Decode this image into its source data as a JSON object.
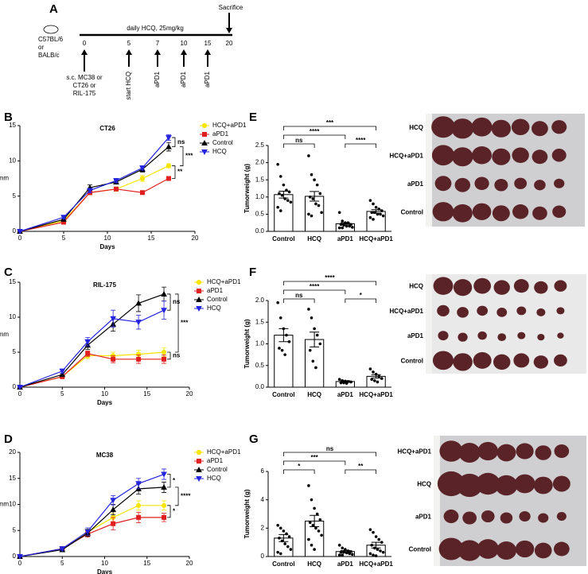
{
  "timeline": {
    "label": "A",
    "treatment": "daily HCQ, 25mg/kg",
    "end": "Sacrifice",
    "mice": [
      "C57BL/6",
      "or",
      "BALB/c"
    ],
    "injection": [
      "s.c. MC38 or",
      "CT26 or",
      "RIL-175"
    ],
    "days": [
      0,
      5,
      7,
      10,
      15,
      20
    ],
    "events": [
      "start HCQ",
      "aPD1",
      "aPD1",
      "aPD1"
    ]
  },
  "chart_data": [
    {
      "type": "line",
      "label": "B",
      "title": "CT26",
      "x_label": "Days",
      "y_label": "mm",
      "x": [
        0,
        5,
        8,
        11,
        14,
        17
      ],
      "xlim": [
        0,
        20
      ],
      "xticks": [
        0,
        5,
        10,
        15,
        20
      ],
      "ylim": [
        0,
        15
      ],
      "yticks": [
        0,
        5,
        10,
        15
      ],
      "series": [
        {
          "name": "HCQ+aPD1",
          "color": "#f5e500",
          "marker": "circle",
          "values": [
            0,
            1.5,
            5.5,
            6,
            7.5,
            9.3
          ],
          "errors": [
            0,
            0.2,
            0.3,
            0.3,
            0.4,
            0.3
          ]
        },
        {
          "name": "aPD1",
          "color": "#e02020",
          "marker": "square",
          "values": [
            0,
            1.3,
            5.5,
            6,
            5.5,
            7.5
          ],
          "errors": [
            0,
            0.2,
            0.3,
            0.2,
            0.2,
            0.2
          ]
        },
        {
          "name": "Control",
          "color": "#000000",
          "marker": "triangle-up",
          "values": [
            0,
            1.7,
            6.2,
            7,
            8.8,
            12
          ],
          "errors": [
            0,
            0.2,
            0.4,
            0.3,
            0.4,
            0.6
          ]
        },
        {
          "name": "HCQ",
          "color": "#2424e0",
          "marker": "triangle-down",
          "values": [
            0,
            2,
            5.8,
            7.2,
            9,
            13.3
          ],
          "errors": [
            0,
            0.2,
            0.3,
            0.3,
            0.3,
            0.4
          ]
        }
      ],
      "annotations": [
        {
          "text": "ns",
          "between": [
            "HCQ",
            "Control"
          ]
        },
        {
          "text": "***",
          "between": [
            "Control",
            "HCQ+aPD1"
          ]
        },
        {
          "text": "**",
          "between": [
            "HCQ+aPD1",
            "aPD1"
          ]
        }
      ]
    },
    {
      "type": "line",
      "label": "C",
      "title": "RIL-175",
      "x_label": "Days",
      "y_label": "mm",
      "x": [
        0,
        5,
        8,
        11,
        14,
        17
      ],
      "xlim": [
        0,
        20
      ],
      "xticks": [
        0,
        5,
        10,
        15,
        20
      ],
      "ylim": [
        0,
        15
      ],
      "yticks": [
        0,
        5,
        10,
        15
      ],
      "series": [
        {
          "name": "HCQ+aPD1",
          "color": "#f5e500",
          "marker": "circle",
          "values": [
            0,
            1.5,
            4.5,
            4.5,
            4.7,
            5
          ],
          "errors": [
            0,
            0.2,
            0.4,
            0.5,
            0.6,
            0.6
          ]
        },
        {
          "name": "aPD1",
          "color": "#e02020",
          "marker": "square",
          "values": [
            0,
            1.5,
            4.8,
            4,
            4,
            4
          ],
          "errors": [
            0,
            0.2,
            0.4,
            0.5,
            0.6,
            0.6
          ]
        },
        {
          "name": "Control",
          "color": "#000000",
          "marker": "triangle-up",
          "values": [
            0,
            1.8,
            6,
            9,
            12,
            13.3
          ],
          "errors": [
            0,
            0.2,
            0.6,
            1,
            1.2,
            1
          ]
        },
        {
          "name": "HCQ",
          "color": "#2424e0",
          "marker": "triangle-down",
          "values": [
            0,
            2.3,
            6.5,
            9.8,
            9.3,
            11
          ],
          "errors": [
            0,
            0.3,
            0.6,
            1.2,
            1,
            1.3
          ]
        }
      ],
      "annotations": [
        {
          "text": "ns",
          "between": [
            "HCQ",
            "Control"
          ]
        },
        {
          "text": "***",
          "between": [
            "Control",
            "HCQ+aPD1"
          ]
        },
        {
          "text": "ns",
          "between": [
            "HCQ+aPD1",
            "aPD1"
          ]
        }
      ]
    },
    {
      "type": "line",
      "label": "D",
      "title": "MC38",
      "x_label": "Days",
      "y_label": "mm",
      "x": [
        0,
        5,
        8,
        11,
        14,
        17
      ],
      "xlim": [
        0,
        20
      ],
      "xticks": [
        0,
        5,
        10,
        15,
        20
      ],
      "ylim": [
        0,
        20
      ],
      "yticks": [
        0,
        5,
        10,
        15,
        20
      ],
      "series": [
        {
          "name": "HCQ+aPD1",
          "color": "#f5e500",
          "marker": "circle",
          "values": [
            0,
            1.5,
            4.7,
            7.5,
            9.8,
            9.8
          ],
          "errors": [
            0,
            0.2,
            0.6,
            0.8,
            0.9,
            0.9
          ]
        },
        {
          "name": "aPD1",
          "color": "#e02020",
          "marker": "square",
          "values": [
            0,
            1.5,
            4.3,
            6.3,
            7.5,
            7.5
          ],
          "errors": [
            0,
            0.2,
            0.6,
            1.2,
            1,
            0.8
          ]
        },
        {
          "name": "Control",
          "color": "#000000",
          "marker": "triangle-up",
          "values": [
            0,
            1.3,
            4.5,
            9,
            13,
            13.3
          ],
          "errors": [
            0,
            0.2,
            0.6,
            1,
            1,
            1
          ]
        },
        {
          "name": "HCQ",
          "color": "#2424e0",
          "marker": "triangle-down",
          "values": [
            0,
            1.5,
            4.8,
            10.8,
            14,
            15.8
          ],
          "errors": [
            0,
            0.3,
            0.7,
            0.9,
            1,
            1
          ]
        }
      ],
      "annotations": [
        {
          "text": "*",
          "between": [
            "HCQ",
            "Control"
          ]
        },
        {
          "text": "****",
          "between": [
            "Control",
            "HCQ+aPD1"
          ]
        },
        {
          "text": "*",
          "between": [
            "HCQ+aPD1",
            "aPD1"
          ]
        }
      ]
    },
    {
      "type": "bar",
      "label": "E",
      "y_label": "Tumorweight (g)",
      "bar_color": "#ffffff",
      "categories": [
        "Control",
        "HCQ",
        "aPD1",
        "HCQ+aPD1"
      ],
      "values": [
        1.07,
        1.02,
        0.22,
        0.58
      ],
      "errors": [
        0.1,
        0.14,
        0.03,
        0.05
      ],
      "points": [
        [
          1.95,
          1.6,
          1.35,
          1.2,
          1.15,
          1.1,
          1.05,
          0.95,
          0.9,
          0.85,
          0.7,
          0.6
        ],
        [
          2.2,
          1.65,
          1.5,
          1.35,
          1.1,
          1.0,
          0.95,
          0.8,
          0.75,
          0.55,
          0.5,
          0.45
        ],
        [
          0.55,
          0.3,
          0.25,
          0.25,
          0.2,
          0.2,
          0.18,
          0.15,
          0.15,
          0.12,
          0.1,
          0.1
        ],
        [
          0.9,
          0.8,
          0.7,
          0.65,
          0.6,
          0.55,
          0.55,
          0.5,
          0.5,
          0.45,
          0.4,
          0.35
        ]
      ],
      "ylim": [
        0,
        2.5
      ],
      "yticks": [
        {
          "value": 0,
          "label": "0.0"
        },
        0.5,
        {
          "value": 1,
          "label": "1.0"
        },
        1.5,
        {
          "value": 2,
          "label": "2.0"
        },
        2.5
      ],
      "annotations": [
        {
          "text": "ns",
          "between": [
            "Control",
            "HCQ"
          ]
        },
        {
          "text": "****",
          "between": [
            "Control",
            "aPD1"
          ]
        },
        {
          "text": "***",
          "between": [
            "Control",
            "HCQ+aPD1"
          ]
        },
        {
          "text": "****",
          "between": [
            "aPD1",
            "HCQ+aPD1"
          ]
        }
      ]
    },
    {
      "type": "bar",
      "label": "F",
      "y_label": "Tumorweight (g)",
      "bar_color": "#ffffff",
      "categories": [
        "Control",
        "HCQ",
        "aPD1",
        "HCQ+aPD1"
      ],
      "values": [
        1.2,
        1.1,
        0.13,
        0.25
      ],
      "errors": [
        0.15,
        0.17,
        0.02,
        0.04
      ],
      "points": [
        [
          1.95,
          1.6,
          1.35,
          1.2,
          1.05,
          0.9,
          0.85,
          0.75
        ],
        [
          1.8,
          1.6,
          1.35,
          1.2,
          1.0,
          0.85,
          0.6,
          0.45
        ],
        [
          0.18,
          0.15,
          0.14,
          0.13,
          0.12,
          0.1,
          0.1,
          0.09
        ],
        [
          0.42,
          0.35,
          0.3,
          0.25,
          0.2,
          0.18,
          0.15,
          0.12
        ]
      ],
      "ylim": [
        0,
        2
      ],
      "yticks": [
        {
          "value": 0,
          "label": "0.0"
        },
        0.5,
        {
          "value": 1,
          "label": "1.0"
        },
        1.5,
        {
          "value": 2,
          "label": "2.0"
        }
      ],
      "annotations": [
        {
          "text": "ns",
          "between": [
            "Control",
            "HCQ"
          ]
        },
        {
          "text": "****",
          "between": [
            "Control",
            "aPD1"
          ]
        },
        {
          "text": "****",
          "between": [
            "Control",
            "HCQ+aPD1"
          ]
        },
        {
          "text": "*",
          "between": [
            "aPD1",
            "HCQ+aPD1"
          ]
        }
      ]
    },
    {
      "type": "bar",
      "label": "G",
      "y_label": "Tumorweight (g)",
      "bar_color": "#ffffff",
      "categories": [
        "Control",
        "HCQ",
        "aPD1",
        "HCQ+aPD1"
      ],
      "values": [
        1.3,
        2.5,
        0.35,
        0.8
      ],
      "errors": [
        0.25,
        0.4,
        0.07,
        0.2
      ],
      "points": [
        [
          2.2,
          2.0,
          1.8,
          1.6,
          1.4,
          1.3,
          1.1,
          0.9,
          0.7,
          0.5,
          0.3,
          0.2
        ],
        [
          5.0,
          4.0,
          3.4,
          3.0,
          2.6,
          2.4,
          2.2,
          2.0,
          1.8,
          1.5,
          1.2,
          0.8,
          0.5
        ],
        [
          0.8,
          0.6,
          0.5,
          0.4,
          0.35,
          0.3,
          0.3,
          0.25,
          0.2,
          0.15,
          0.1,
          0.1
        ],
        [
          1.9,
          1.7,
          1.4,
          1.2,
          1.0,
          0.8,
          0.6,
          0.5,
          0.4,
          0.3,
          0.2,
          0.1,
          0.05
        ]
      ],
      "ylim": [
        0,
        6
      ],
      "yticks": [
        0,
        2,
        4,
        6
      ],
      "annotations": [
        {
          "text": "*",
          "between": [
            "Control",
            "HCQ"
          ]
        },
        {
          "text": "***",
          "between": [
            "Control",
            "aPD1"
          ]
        },
        {
          "text": "**",
          "between": [
            "aPD1",
            "HCQ+aPD1"
          ]
        },
        {
          "text": "ns",
          "between": [
            "Control",
            "HCQ+aPD1"
          ]
        }
      ]
    }
  ],
  "photos": [
    {
      "labels": [
        "HCQ",
        "HCQ+aPD1",
        "aPD1",
        "Control"
      ]
    },
    {
      "labels": [
        "HCQ",
        "HCQ+aPD1",
        "aPD1",
        "Control"
      ]
    },
    {
      "labels": [
        "HCQ+aPD1",
        "HCQ",
        "aPD1",
        "Control"
      ]
    }
  ]
}
